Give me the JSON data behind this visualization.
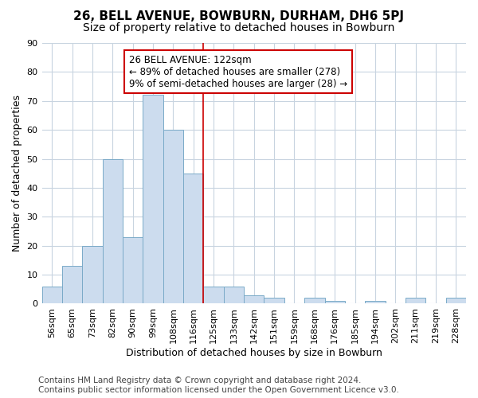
{
  "title": "26, BELL AVENUE, BOWBURN, DURHAM, DH6 5PJ",
  "subtitle": "Size of property relative to detached houses in Bowburn",
  "xlabel": "Distribution of detached houses by size in Bowburn",
  "ylabel": "Number of detached properties",
  "bar_labels": [
    "56sqm",
    "65sqm",
    "73sqm",
    "82sqm",
    "90sqm",
    "99sqm",
    "108sqm",
    "116sqm",
    "125sqm",
    "133sqm",
    "142sqm",
    "151sqm",
    "159sqm",
    "168sqm",
    "176sqm",
    "185sqm",
    "194sqm",
    "202sqm",
    "211sqm",
    "219sqm",
    "228sqm"
  ],
  "bar_heights": [
    6,
    13,
    20,
    50,
    23,
    72,
    60,
    45,
    6,
    6,
    3,
    2,
    0,
    2,
    1,
    0,
    1,
    0,
    2,
    0,
    2
  ],
  "bar_color": "#ccdcee",
  "bar_edge_color": "#7aaac8",
  "vline_index": 8,
  "vline_color": "#cc0000",
  "annotation_text": "26 BELL AVENUE: 122sqm\n← 89% of detached houses are smaller (278)\n9% of semi-detached houses are larger (28) →",
  "annotation_box_color": "#ffffff",
  "annotation_box_edge_color": "#cc0000",
  "ylim": [
    0,
    90
  ],
  "yticks": [
    0,
    10,
    20,
    30,
    40,
    50,
    60,
    70,
    80,
    90
  ],
  "footer_line1": "Contains HM Land Registry data © Crown copyright and database right 2024.",
  "footer_line2": "Contains public sector information licensed under the Open Government Licence v3.0.",
  "background_color": "#ffffff",
  "plot_background_color": "#ffffff",
  "grid_color": "#c8d4e0",
  "title_fontsize": 11,
  "subtitle_fontsize": 10,
  "axis_label_fontsize": 9,
  "tick_fontsize": 8,
  "annotation_fontsize": 8.5,
  "footer_fontsize": 7.5
}
